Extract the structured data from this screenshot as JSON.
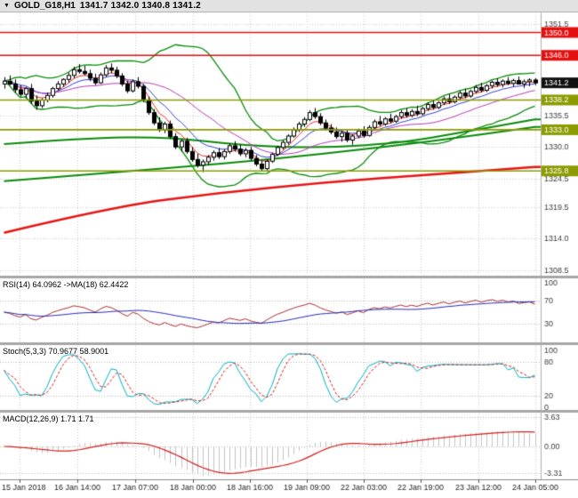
{
  "titlebar": {
    "symbol": "GOLD_G18,H1",
    "ohlc": "1341.7 1342.0 1340.8 1341.2"
  },
  "colors": {
    "background": "#ffffff",
    "titlebar_bg": "#e2e2e2",
    "grid": "#c9c9c9",
    "axis_text": "#3c3c3c",
    "panel_divider": "#a6a6a6",
    "axis_separator": "#b0b0b0",
    "candle_up": "#ffffff",
    "candle_down": "#000000",
    "candle_outline": "#000000",
    "resistance": "#e41010",
    "support": "#8b9b00",
    "current_badge": "#111111",
    "bollinger": "#0b8a0b",
    "rsi_line": "#a83232",
    "rsi_ma": "#2a2ab8",
    "stoch_main": "#00b2c4",
    "stoch_signal": "#d22020",
    "macd_hist": "#c4c4c4",
    "macd_signal": "#d22020"
  },
  "chart_data": [
    {
      "type": "candlestick",
      "symbol": "GOLD_G18",
      "timeframe": "H1",
      "y_range": [
        1307.5,
        1353.5
      ],
      "y_ticks": [
        {
          "value": 1351.5,
          "label": "1351.5"
        },
        {
          "value": 1335.5,
          "label": "1335.5"
        },
        {
          "value": 1330.0,
          "label": "1330.0"
        },
        {
          "value": 1324.5,
          "label": "1324.5"
        },
        {
          "value": 1319.5,
          "label": "1319.5"
        },
        {
          "value": 1314.0,
          "label": "1314.0"
        },
        {
          "value": 1308.5,
          "label": "1308.5"
        }
      ],
      "levels": [
        {
          "value": 1350.0,
          "label": "1350.0",
          "color": "#e41010",
          "role": "resistance"
        },
        {
          "value": 1346.0,
          "label": "1346.0",
          "color": "#e41010",
          "role": "resistance"
        },
        {
          "value": 1338.2,
          "label": "1338.2",
          "color": "#8b9b00",
          "role": "support"
        },
        {
          "value": 1333.0,
          "label": "1333.0",
          "color": "#8b9b00",
          "role": "support"
        },
        {
          "value": 1325.8,
          "label": "1325.8",
          "color": "#8b9b00",
          "role": "support"
        }
      ],
      "current": {
        "value": 1341.2,
        "label": "1341.2"
      },
      "x_labels": [
        "15 Jan 2018",
        "16 Jan 14:00",
        "17 Jan 07:00",
        "18 Jan 00:00",
        "18 Jan 16:00",
        "19 Jan 09:00",
        "22 Jan 03:00",
        "22 Jan 19:00",
        "23 Jan 12:00",
        "24 Jan 05:00"
      ],
      "overlays": {
        "bollinger": {
          "period": 20,
          "deviation": 2,
          "color": "#0b8a0b"
        },
        "ma_thin": [
          {
            "period": 5,
            "method": "ema",
            "color": "#e03030"
          },
          {
            "period": 10,
            "method": "ema",
            "color": "#3542cc"
          },
          {
            "period": 21,
            "method": "sma",
            "color": "#b73bb7"
          }
        ],
        "ma_long": [
          {
            "color": "#0b8a0b",
            "width": 2,
            "points": [
              [
                0,
                1330.5
              ],
              [
                15,
                1331.5
              ],
              [
                30,
                1331.8
              ],
              [
                45,
                1330.2
              ],
              [
                60,
                1329.8
              ],
              [
                75,
                1330.8
              ],
              [
                85,
                1332.5
              ],
              [
                99,
                1334.8
              ]
            ]
          },
          {
            "color": "#0b8a0b",
            "width": 2,
            "points": [
              [
                0,
                1324.0
              ],
              [
                20,
                1325.5
              ],
              [
                40,
                1327.0
              ],
              [
                60,
                1328.8
              ],
              [
                80,
                1331.0
              ],
              [
                99,
                1333.5
              ]
            ]
          },
          {
            "color": "#e81414",
            "width": 2.5,
            "points": [
              [
                0,
                1315.0
              ],
              [
                20,
                1319.5
              ],
              [
                40,
                1322.0
              ],
              [
                60,
                1323.8
              ],
              [
                80,
                1325.2
              ],
              [
                99,
                1326.5
              ]
            ]
          }
        ]
      },
      "candles_ohlc": [
        [
          1341.0,
          1342.2,
          1340.2,
          1341.5
        ],
        [
          1341.5,
          1342.5,
          1340.8,
          1341.0
        ],
        [
          1341.0,
          1341.8,
          1339.5,
          1340.0
        ],
        [
          1340.0,
          1340.8,
          1338.8,
          1339.2
        ],
        [
          1339.2,
          1340.5,
          1338.5,
          1340.2
        ],
        [
          1340.2,
          1341.0,
          1337.5,
          1338.0
        ],
        [
          1338.0,
          1339.0,
          1336.5,
          1337.2
        ],
        [
          1337.2,
          1338.5,
          1336.8,
          1338.2
        ],
        [
          1338.2,
          1339.5,
          1337.8,
          1339.0
        ],
        [
          1339.0,
          1340.5,
          1338.6,
          1340.2
        ],
        [
          1340.2,
          1341.5,
          1339.8,
          1341.0
        ],
        [
          1341.0,
          1342.0,
          1340.5,
          1341.8
        ],
        [
          1341.8,
          1343.0,
          1341.2,
          1342.5
        ],
        [
          1342.5,
          1344.0,
          1342.0,
          1343.5
        ],
        [
          1343.5,
          1344.5,
          1342.8,
          1343.2
        ],
        [
          1343.2,
          1344.2,
          1342.5,
          1342.8
        ],
        [
          1342.8,
          1343.5,
          1341.5,
          1342.0
        ],
        [
          1342.0,
          1342.8,
          1340.8,
          1341.2
        ],
        [
          1341.2,
          1343.0,
          1341.0,
          1342.6
        ],
        [
          1342.6,
          1344.3,
          1342.2,
          1343.8
        ],
        [
          1343.8,
          1344.6,
          1342.9,
          1343.4
        ],
        [
          1343.4,
          1344.0,
          1342.0,
          1342.4
        ],
        [
          1342.4,
          1342.9,
          1340.6,
          1341.0
        ],
        [
          1341.0,
          1341.6,
          1339.4,
          1339.8
        ],
        [
          1339.8,
          1341.8,
          1339.5,
          1341.4
        ],
        [
          1341.4,
          1342.2,
          1340.2,
          1340.6
        ],
        [
          1340.6,
          1341.0,
          1337.8,
          1338.2
        ],
        [
          1338.2,
          1338.8,
          1335.6,
          1336.0
        ],
        [
          1336.0,
          1336.6,
          1333.8,
          1334.2
        ],
        [
          1334.2,
          1335.2,
          1332.6,
          1333.0
        ],
        [
          1333.0,
          1334.4,
          1332.4,
          1334.0
        ],
        [
          1334.0,
          1334.6,
          1331.4,
          1331.8
        ],
        [
          1331.8,
          1332.4,
          1329.6,
          1330.0
        ],
        [
          1330.0,
          1331.4,
          1329.2,
          1331.0
        ],
        [
          1331.0,
          1331.6,
          1328.8,
          1329.2
        ],
        [
          1329.2,
          1330.0,
          1327.4,
          1327.8
        ],
        [
          1327.8,
          1328.8,
          1326.4,
          1326.8
        ],
        [
          1326.8,
          1327.8,
          1325.6,
          1327.4
        ],
        [
          1327.4,
          1328.6,
          1326.9,
          1328.2
        ],
        [
          1328.2,
          1329.4,
          1327.6,
          1329.0
        ],
        [
          1329.0,
          1329.8,
          1327.9,
          1328.3
        ],
        [
          1328.3,
          1329.6,
          1327.8,
          1329.2
        ],
        [
          1329.2,
          1330.6,
          1328.8,
          1330.2
        ],
        [
          1330.2,
          1331.0,
          1329.2,
          1329.6
        ],
        [
          1329.6,
          1330.4,
          1328.4,
          1328.8
        ],
        [
          1328.8,
          1329.8,
          1328.2,
          1329.4
        ],
        [
          1329.4,
          1330.0,
          1327.6,
          1328.0
        ],
        [
          1328.0,
          1328.6,
          1326.6,
          1327.0
        ],
        [
          1327.0,
          1327.6,
          1325.8,
          1326.2
        ],
        [
          1326.2,
          1327.8,
          1325.9,
          1327.5
        ],
        [
          1327.5,
          1329.0,
          1327.2,
          1328.7
        ],
        [
          1328.7,
          1330.2,
          1328.4,
          1329.9
        ],
        [
          1329.9,
          1331.2,
          1329.5,
          1330.8
        ],
        [
          1330.8,
          1332.2,
          1330.4,
          1331.9
        ],
        [
          1331.9,
          1333.4,
          1331.6,
          1333.0
        ],
        [
          1333.0,
          1334.4,
          1332.6,
          1334.0
        ],
        [
          1334.0,
          1335.2,
          1333.5,
          1334.8
        ],
        [
          1334.8,
          1336.4,
          1334.5,
          1336.0
        ],
        [
          1336.0,
          1336.8,
          1334.9,
          1335.3
        ],
        [
          1335.3,
          1335.9,
          1333.8,
          1334.2
        ],
        [
          1334.2,
          1334.8,
          1332.9,
          1333.3
        ],
        [
          1333.3,
          1334.0,
          1332.2,
          1332.6
        ],
        [
          1332.6,
          1333.4,
          1331.4,
          1331.8
        ],
        [
          1331.8,
          1332.8,
          1330.9,
          1332.4
        ],
        [
          1332.4,
          1333.0,
          1330.8,
          1331.2
        ],
        [
          1331.2,
          1332.2,
          1330.4,
          1331.9
        ],
        [
          1331.9,
          1333.2,
          1331.5,
          1332.8
        ],
        [
          1332.8,
          1333.6,
          1331.6,
          1332.0
        ],
        [
          1332.0,
          1333.8,
          1331.8,
          1333.4
        ],
        [
          1333.4,
          1334.8,
          1333.0,
          1334.4
        ],
        [
          1334.4,
          1335.4,
          1333.6,
          1334.0
        ],
        [
          1334.0,
          1335.2,
          1333.7,
          1334.9
        ],
        [
          1334.9,
          1335.8,
          1334.1,
          1334.5
        ],
        [
          1334.5,
          1335.6,
          1334.2,
          1335.3
        ],
        [
          1335.3,
          1336.4,
          1334.9,
          1336.0
        ],
        [
          1336.0,
          1336.8,
          1335.1,
          1335.5
        ],
        [
          1335.5,
          1336.6,
          1335.2,
          1336.2
        ],
        [
          1336.2,
          1337.2,
          1335.4,
          1335.8
        ],
        [
          1335.8,
          1337.0,
          1335.5,
          1336.7
        ],
        [
          1336.7,
          1337.8,
          1336.3,
          1337.4
        ],
        [
          1337.4,
          1338.2,
          1336.5,
          1336.9
        ],
        [
          1336.9,
          1338.0,
          1336.6,
          1337.7
        ],
        [
          1337.7,
          1338.8,
          1337.3,
          1338.4
        ],
        [
          1338.4,
          1339.2,
          1337.5,
          1337.9
        ],
        [
          1337.9,
          1339.0,
          1337.6,
          1338.7
        ],
        [
          1338.7,
          1339.8,
          1338.3,
          1339.4
        ],
        [
          1339.4,
          1340.2,
          1338.5,
          1338.9
        ],
        [
          1338.9,
          1340.0,
          1338.6,
          1339.7
        ],
        [
          1339.7,
          1340.8,
          1339.3,
          1340.4
        ],
        [
          1340.4,
          1341.2,
          1339.5,
          1339.9
        ],
        [
          1339.9,
          1341.0,
          1339.6,
          1340.7
        ],
        [
          1340.7,
          1341.6,
          1340.2,
          1341.3
        ],
        [
          1341.3,
          1342.0,
          1340.5,
          1340.9
        ],
        [
          1340.9,
          1341.8,
          1340.4,
          1341.5
        ],
        [
          1341.5,
          1342.2,
          1340.8,
          1341.1
        ],
        [
          1341.1,
          1341.9,
          1340.5,
          1341.6
        ],
        [
          1341.6,
          1342.3,
          1340.9,
          1341.0
        ],
        [
          1341.0,
          1341.8,
          1340.3,
          1341.4
        ],
        [
          1341.4,
          1342.0,
          1340.6,
          1341.7
        ],
        [
          1341.7,
          1342.0,
          1340.8,
          1341.2
        ]
      ]
    },
    {
      "type": "line",
      "name": "rsi",
      "header": "RSI(14) 64.0962 ->MA(18) 62.4422",
      "period": 14,
      "ma_period": 18,
      "value": 64.0962,
      "ma_value": 62.4422,
      "levels": [
        70,
        30
      ],
      "y_ticks": [
        {
          "value": 100,
          "label": "100"
        },
        {
          "value": 70,
          "label": "70"
        },
        {
          "value": 30,
          "label": "30"
        }
      ],
      "y_range": [
        0,
        100
      ]
    },
    {
      "type": "line",
      "name": "stochastic",
      "header": "Stoch(5,3,3) 70.9677 58.9001",
      "k_period": 5,
      "d_period": 3,
      "slowing": 3,
      "value": 70.9677,
      "signal_value": 58.9001,
      "levels": [
        80,
        20
      ],
      "y_ticks": [
        {
          "value": 100,
          "label": "100"
        },
        {
          "value": 80,
          "label": "80"
        },
        {
          "value": 20,
          "label": "20"
        },
        {
          "value": 0,
          "label": "0"
        }
      ],
      "y_range": [
        0,
        100
      ]
    },
    {
      "type": "line",
      "name": "macd",
      "header": "MACD(12,26,9) 1.71 1.71",
      "fast": 12,
      "slow": 26,
      "signal": 9,
      "value": 1.71,
      "signal_value": 1.71,
      "y_ticks": [
        {
          "value": 3.63,
          "label": "3.63"
        },
        {
          "value": 0,
          "label": "0.00"
        },
        {
          "value": -3.31,
          "label": "-3.31"
        }
      ],
      "y_range": [
        -3.31,
        3.63
      ]
    }
  ]
}
